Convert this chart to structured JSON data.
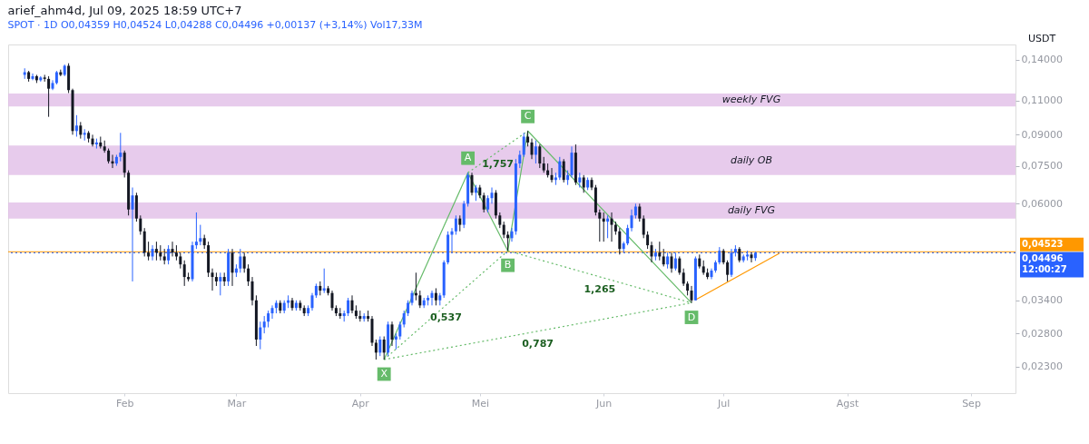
{
  "chart_data": {
    "type": "candlestick",
    "title": "arief_ahm4d, Jul 09, 2025 18:59 UTC+7",
    "subtitle": "SPOT · 1D   O0,04359 H0,04524 L0,04288 C0,04496 +0,00137 (+3,14%) Vol17,33M",
    "x": [
      "2025-01-07",
      "2025-01-08",
      "2025-01-09",
      "2025-01-10",
      "2025-01-11",
      "2025-01-12",
      "2025-01-13",
      "2025-01-14",
      "2025-01-15",
      "2025-01-16",
      "2025-01-17",
      "2025-01-18",
      "2025-01-19",
      "2025-01-20",
      "2025-01-21",
      "2025-01-22",
      "2025-01-23",
      "2025-01-24",
      "2025-01-25",
      "2025-01-26",
      "2025-01-27",
      "2025-01-28",
      "2025-01-29",
      "2025-01-30",
      "2025-01-31",
      "2025-02-01",
      "2025-02-02",
      "2025-02-03",
      "2025-02-04",
      "2025-02-05",
      "2025-02-06",
      "2025-02-07",
      "2025-02-08",
      "2025-02-09",
      "2025-02-10",
      "2025-02-11",
      "2025-02-12",
      "2025-02-13",
      "2025-02-14",
      "2025-02-15",
      "2025-02-16",
      "2025-02-17",
      "2025-02-18",
      "2025-02-19",
      "2025-02-20",
      "2025-02-21",
      "2025-02-22",
      "2025-02-23",
      "2025-02-24",
      "2025-02-25",
      "2025-02-26",
      "2025-02-27",
      "2025-02-28",
      "2025-03-01",
      "2025-03-02",
      "2025-03-03",
      "2025-03-04",
      "2025-03-05",
      "2025-03-06",
      "2025-03-07",
      "2025-03-08",
      "2025-03-09",
      "2025-03-10",
      "2025-03-11",
      "2025-03-12",
      "2025-03-13",
      "2025-03-14",
      "2025-03-15",
      "2025-03-16",
      "2025-03-17",
      "2025-03-18",
      "2025-03-19",
      "2025-03-20",
      "2025-03-21",
      "2025-03-22",
      "2025-03-23",
      "2025-03-24",
      "2025-03-25",
      "2025-03-26",
      "2025-03-27",
      "2025-03-28",
      "2025-03-29",
      "2025-03-30",
      "2025-03-31",
      "2025-04-01",
      "2025-04-02",
      "2025-04-03",
      "2025-04-04",
      "2025-04-05",
      "2025-04-06",
      "2025-04-07",
      "2025-04-08",
      "2025-04-09",
      "2025-04-10",
      "2025-04-11",
      "2025-04-12",
      "2025-04-13",
      "2025-04-14",
      "2025-04-15",
      "2025-04-16",
      "2025-04-17",
      "2025-04-18",
      "2025-04-19",
      "2025-04-20",
      "2025-04-21",
      "2025-04-22",
      "2025-04-23",
      "2025-04-24",
      "2025-04-25",
      "2025-04-26",
      "2025-04-27",
      "2025-04-28",
      "2025-04-29",
      "2025-04-30",
      "2025-05-01",
      "2025-05-02",
      "2025-05-03",
      "2025-05-04",
      "2025-05-05",
      "2025-05-06",
      "2025-05-07",
      "2025-05-08",
      "2025-05-09",
      "2025-05-10",
      "2025-05-11",
      "2025-05-12",
      "2025-05-13",
      "2025-05-14",
      "2025-05-15",
      "2025-05-16",
      "2025-05-17",
      "2025-05-18",
      "2025-05-19",
      "2025-05-20",
      "2025-05-21",
      "2025-05-22",
      "2025-05-23",
      "2025-05-24",
      "2025-05-25",
      "2025-05-26",
      "2025-05-27",
      "2025-05-28",
      "2025-05-29",
      "2025-05-30",
      "2025-05-31",
      "2025-06-01",
      "2025-06-02",
      "2025-06-03",
      "2025-06-04",
      "2025-06-05",
      "2025-06-06",
      "2025-06-07",
      "2025-06-08",
      "2025-06-09",
      "2025-06-10",
      "2025-06-11",
      "2025-06-12",
      "2025-06-13",
      "2025-06-14",
      "2025-06-15",
      "2025-06-16",
      "2025-06-17",
      "2025-06-18",
      "2025-06-19",
      "2025-06-20",
      "2025-06-21",
      "2025-06-22",
      "2025-06-23",
      "2025-06-24",
      "2025-06-25",
      "2025-06-26",
      "2025-06-27",
      "2025-06-28",
      "2025-06-29",
      "2025-06-30",
      "2025-07-01",
      "2025-07-02",
      "2025-07-03",
      "2025-07-04",
      "2025-07-05",
      "2025-07-06",
      "2025-07-07",
      "2025-07-08",
      "2025-07-09"
    ],
    "ohlc": [
      [
        0.128,
        0.133,
        0.125,
        0.13
      ],
      [
        0.13,
        0.131,
        0.123,
        0.125
      ],
      [
        0.125,
        0.129,
        0.124,
        0.127
      ],
      [
        0.127,
        0.128,
        0.122,
        0.124
      ],
      [
        0.124,
        0.127,
        0.123,
        0.126
      ],
      [
        0.126,
        0.128,
        0.123,
        0.125
      ],
      [
        0.125,
        0.127,
        0.1,
        0.118
      ],
      [
        0.118,
        0.124,
        0.117,
        0.122
      ],
      [
        0.122,
        0.131,
        0.121,
        0.13
      ],
      [
        0.13,
        0.132,
        0.127,
        0.128
      ],
      [
        0.128,
        0.136,
        0.127,
        0.135
      ],
      [
        0.135,
        0.137,
        0.115,
        0.117
      ],
      [
        0.117,
        0.118,
        0.09,
        0.092
      ],
      [
        0.092,
        0.101,
        0.089,
        0.095
      ],
      [
        0.095,
        0.097,
        0.088,
        0.09
      ],
      [
        0.09,
        0.093,
        0.087,
        0.091
      ],
      [
        0.091,
        0.092,
        0.086,
        0.088
      ],
      [
        0.088,
        0.09,
        0.084,
        0.085
      ],
      [
        0.085,
        0.088,
        0.083,
        0.086
      ],
      [
        0.086,
        0.089,
        0.083,
        0.084
      ],
      [
        0.084,
        0.087,
        0.081,
        0.082
      ],
      [
        0.082,
        0.083,
        0.076,
        0.077
      ],
      [
        0.077,
        0.08,
        0.074,
        0.076
      ],
      [
        0.076,
        0.08,
        0.075,
        0.079
      ],
      [
        0.079,
        0.091,
        0.077,
        0.081
      ],
      [
        0.081,
        0.082,
        0.07,
        0.072
      ],
      [
        0.072,
        0.073,
        0.056,
        0.058
      ],
      [
        0.058,
        0.066,
        0.038,
        0.063
      ],
      [
        0.063,
        0.064,
        0.054,
        0.055
      ],
      [
        0.055,
        0.056,
        0.05,
        0.051
      ],
      [
        0.051,
        0.052,
        0.044,
        0.045
      ],
      [
        0.045,
        0.048,
        0.043,
        0.044
      ],
      [
        0.044,
        0.047,
        0.043,
        0.046
      ],
      [
        0.046,
        0.048,
        0.043,
        0.045
      ],
      [
        0.045,
        0.047,
        0.043,
        0.044
      ],
      [
        0.044,
        0.046,
        0.042,
        0.043
      ],
      [
        0.043,
        0.047,
        0.042,
        0.046
      ],
      [
        0.046,
        0.048,
        0.044,
        0.045
      ],
      [
        0.045,
        0.047,
        0.043,
        0.044
      ],
      [
        0.044,
        0.045,
        0.041,
        0.042
      ],
      [
        0.042,
        0.043,
        0.037,
        0.039
      ],
      [
        0.039,
        0.04,
        0.038,
        0.0385
      ],
      [
        0.0385,
        0.048,
        0.038,
        0.047
      ],
      [
        0.047,
        0.057,
        0.046,
        0.048
      ],
      [
        0.048,
        0.053,
        0.047,
        0.049
      ],
      [
        0.049,
        0.05,
        0.046,
        0.047
      ],
      [
        0.047,
        0.048,
        0.039,
        0.04
      ],
      [
        0.04,
        0.041,
        0.036,
        0.039
      ],
      [
        0.039,
        0.04,
        0.037,
        0.038
      ],
      [
        0.038,
        0.04,
        0.035,
        0.039
      ],
      [
        0.039,
        0.04,
        0.037,
        0.038
      ],
      [
        0.038,
        0.046,
        0.037,
        0.045
      ],
      [
        0.045,
        0.046,
        0.037,
        0.04
      ],
      [
        0.04,
        0.042,
        0.039,
        0.041
      ],
      [
        0.041,
        0.046,
        0.04,
        0.044
      ],
      [
        0.044,
        0.045,
        0.04,
        0.041
      ],
      [
        0.041,
        0.042,
        0.037,
        0.038
      ],
      [
        0.038,
        0.039,
        0.033,
        0.034
      ],
      [
        0.034,
        0.035,
        0.026,
        0.027
      ],
      [
        0.027,
        0.03,
        0.0255,
        0.029
      ],
      [
        0.029,
        0.031,
        0.028,
        0.03
      ],
      [
        0.03,
        0.032,
        0.029,
        0.0315
      ],
      [
        0.0315,
        0.033,
        0.0305,
        0.0325
      ],
      [
        0.0325,
        0.034,
        0.0315,
        0.0335
      ],
      [
        0.0335,
        0.034,
        0.0315,
        0.032
      ],
      [
        0.032,
        0.034,
        0.0315,
        0.0335
      ],
      [
        0.0335,
        0.035,
        0.0325,
        0.034
      ],
      [
        0.034,
        0.0345,
        0.032,
        0.0325
      ],
      [
        0.0325,
        0.034,
        0.032,
        0.0335
      ],
      [
        0.0335,
        0.034,
        0.032,
        0.0325
      ],
      [
        0.0325,
        0.033,
        0.031,
        0.0315
      ],
      [
        0.0315,
        0.033,
        0.031,
        0.0325
      ],
      [
        0.0325,
        0.0355,
        0.032,
        0.035
      ],
      [
        0.035,
        0.0375,
        0.0345,
        0.037
      ],
      [
        0.037,
        0.038,
        0.035,
        0.036
      ],
      [
        0.036,
        0.041,
        0.0355,
        0.0365
      ],
      [
        0.0365,
        0.037,
        0.035,
        0.0355
      ],
      [
        0.0355,
        0.036,
        0.032,
        0.0325
      ],
      [
        0.0325,
        0.033,
        0.031,
        0.0315
      ],
      [
        0.0315,
        0.0325,
        0.0305,
        0.031
      ],
      [
        0.031,
        0.032,
        0.03,
        0.0315
      ],
      [
        0.0315,
        0.0345,
        0.031,
        0.034
      ],
      [
        0.034,
        0.035,
        0.0315,
        0.032
      ],
      [
        0.032,
        0.033,
        0.0305,
        0.031
      ],
      [
        0.031,
        0.032,
        0.03,
        0.0305
      ],
      [
        0.0305,
        0.0315,
        0.03,
        0.031
      ],
      [
        0.031,
        0.032,
        0.03,
        0.0305
      ],
      [
        0.0305,
        0.031,
        0.026,
        0.0265
      ],
      [
        0.0265,
        0.027,
        0.024,
        0.025
      ],
      [
        0.025,
        0.0275,
        0.0245,
        0.027
      ],
      [
        0.027,
        0.0275,
        0.024,
        0.025
      ],
      [
        0.025,
        0.03,
        0.0245,
        0.0295
      ],
      [
        0.0295,
        0.03,
        0.026,
        0.027
      ],
      [
        0.027,
        0.028,
        0.0255,
        0.0275
      ],
      [
        0.0275,
        0.03,
        0.027,
        0.0295
      ],
      [
        0.0295,
        0.032,
        0.029,
        0.0315
      ],
      [
        0.0315,
        0.034,
        0.031,
        0.0335
      ],
      [
        0.0335,
        0.036,
        0.033,
        0.0355
      ],
      [
        0.0355,
        0.04,
        0.034,
        0.035
      ],
      [
        0.035,
        0.036,
        0.0325,
        0.033
      ],
      [
        0.033,
        0.0345,
        0.0325,
        0.034
      ],
      [
        0.034,
        0.035,
        0.033,
        0.0345
      ],
      [
        0.0345,
        0.036,
        0.033,
        0.0355
      ],
      [
        0.0355,
        0.0365,
        0.033,
        0.034
      ],
      [
        0.034,
        0.0355,
        0.033,
        0.035
      ],
      [
        0.035,
        0.043,
        0.0345,
        0.0425
      ],
      [
        0.0425,
        0.051,
        0.042,
        0.05
      ],
      [
        0.05,
        0.052,
        0.045,
        0.051
      ],
      [
        0.051,
        0.056,
        0.05,
        0.055
      ],
      [
        0.055,
        0.056,
        0.051,
        0.053
      ],
      [
        0.053,
        0.061,
        0.052,
        0.06
      ],
      [
        0.06,
        0.072,
        0.059,
        0.071
      ],
      [
        0.071,
        0.072,
        0.063,
        0.064
      ],
      [
        0.064,
        0.067,
        0.061,
        0.066
      ],
      [
        0.066,
        0.067,
        0.062,
        0.063
      ],
      [
        0.063,
        0.064,
        0.057,
        0.058
      ],
      [
        0.058,
        0.063,
        0.057,
        0.062
      ],
      [
        0.062,
        0.066,
        0.06,
        0.064
      ],
      [
        0.064,
        0.065,
        0.055,
        0.056
      ],
      [
        0.056,
        0.057,
        0.052,
        0.053
      ],
      [
        0.053,
        0.054,
        0.049,
        0.05
      ],
      [
        0.05,
        0.051,
        0.0455,
        0.049
      ],
      [
        0.049,
        0.052,
        0.048,
        0.051
      ],
      [
        0.051,
        0.078,
        0.05,
        0.076
      ],
      [
        0.076,
        0.082,
        0.074,
        0.08
      ],
      [
        0.08,
        0.091,
        0.079,
        0.089
      ],
      [
        0.089,
        0.092,
        0.084,
        0.086
      ],
      [
        0.086,
        0.088,
        0.078,
        0.08
      ],
      [
        0.08,
        0.087,
        0.076,
        0.084
      ],
      [
        0.084,
        0.085,
        0.074,
        0.076
      ],
      [
        0.076,
        0.079,
        0.072,
        0.073
      ],
      [
        0.073,
        0.076,
        0.07,
        0.071
      ],
      [
        0.071,
        0.074,
        0.068,
        0.069
      ],
      [
        0.069,
        0.072,
        0.067,
        0.07
      ],
      [
        0.07,
        0.079,
        0.069,
        0.077
      ],
      [
        0.077,
        0.078,
        0.068,
        0.069
      ],
      [
        0.069,
        0.073,
        0.067,
        0.071
      ],
      [
        0.071,
        0.084,
        0.07,
        0.081
      ],
      [
        0.081,
        0.085,
        0.067,
        0.068
      ],
      [
        0.068,
        0.072,
        0.066,
        0.07
      ],
      [
        0.07,
        0.071,
        0.064,
        0.066
      ],
      [
        0.066,
        0.07,
        0.065,
        0.069
      ],
      [
        0.069,
        0.07,
        0.065,
        0.066
      ],
      [
        0.066,
        0.067,
        0.056,
        0.057
      ],
      [
        0.057,
        0.058,
        0.048,
        0.055
      ],
      [
        0.055,
        0.057,
        0.048,
        0.054
      ],
      [
        0.054,
        0.056,
        0.049,
        0.055
      ],
      [
        0.055,
        0.057,
        0.048,
        0.053
      ],
      [
        0.053,
        0.054,
        0.05,
        0.051
      ],
      [
        0.051,
        0.052,
        0.0445,
        0.046
      ],
      [
        0.046,
        0.048,
        0.045,
        0.0475
      ],
      [
        0.0475,
        0.053,
        0.047,
        0.052
      ],
      [
        0.052,
        0.058,
        0.051,
        0.056
      ],
      [
        0.056,
        0.06,
        0.055,
        0.059
      ],
      [
        0.059,
        0.06,
        0.054,
        0.055
      ],
      [
        0.055,
        0.056,
        0.049,
        0.05
      ],
      [
        0.05,
        0.051,
        0.046,
        0.047
      ],
      [
        0.047,
        0.048,
        0.0425,
        0.044
      ],
      [
        0.044,
        0.046,
        0.043,
        0.045
      ],
      [
        0.045,
        0.048,
        0.043,
        0.044
      ],
      [
        0.044,
        0.046,
        0.0415,
        0.042
      ],
      [
        0.042,
        0.045,
        0.041,
        0.044
      ],
      [
        0.044,
        0.045,
        0.04,
        0.041
      ],
      [
        0.041,
        0.045,
        0.0405,
        0.0435
      ],
      [
        0.0435,
        0.044,
        0.0395,
        0.04
      ],
      [
        0.04,
        0.041,
        0.037,
        0.0375
      ],
      [
        0.0375,
        0.038,
        0.035,
        0.036
      ],
      [
        0.036,
        0.037,
        0.0335,
        0.034
      ],
      [
        0.034,
        0.044,
        0.034,
        0.0435
      ],
      [
        0.0435,
        0.0445,
        0.041,
        0.0415
      ],
      [
        0.0415,
        0.043,
        0.0395,
        0.04
      ],
      [
        0.04,
        0.041,
        0.0385,
        0.039
      ],
      [
        0.039,
        0.041,
        0.0385,
        0.0405
      ],
      [
        0.0405,
        0.043,
        0.04,
        0.0425
      ],
      [
        0.0425,
        0.0465,
        0.042,
        0.0455
      ],
      [
        0.0455,
        0.046,
        0.042,
        0.0425
      ],
      [
        0.0425,
        0.043,
        0.038,
        0.0395
      ],
      [
        0.0395,
        0.046,
        0.039,
        0.045
      ],
      [
        0.045,
        0.047,
        0.044,
        0.046
      ],
      [
        0.046,
        0.0465,
        0.0425,
        0.043
      ],
      [
        0.043,
        0.0445,
        0.0425,
        0.044
      ],
      [
        0.044,
        0.0455,
        0.043,
        0.0445
      ],
      [
        0.0445,
        0.045,
        0.0425,
        0.04359
      ],
      [
        0.04359,
        0.04524,
        0.04288,
        0.04496
      ]
    ],
    "series": [
      {
        "type": "line",
        "color": "#66bb6a",
        "line_style": "solid",
        "x": [
          "2025-04-07",
          "2025-04-28",
          "2025-05-08",
          "2025-05-13",
          "2025-06-23"
        ],
        "values": [
          0.024,
          0.072,
          0.0455,
          0.092,
          0.0335
        ]
      },
      {
        "type": "line",
        "color": "#66bb6a",
        "line_style": "dotted",
        "x": [
          "2025-04-07",
          "2025-05-08"
        ],
        "values": [
          0.024,
          0.0455
        ]
      },
      {
        "type": "line",
        "color": "#66bb6a",
        "line_style": "dotted",
        "x": [
          "2025-04-28",
          "2025-05-13"
        ],
        "values": [
          0.072,
          0.092
        ]
      },
      {
        "type": "line",
        "color": "#66bb6a",
        "line_style": "dotted",
        "x": [
          "2025-05-08",
          "2025-06-23"
        ],
        "values": [
          0.0455,
          0.0335
        ]
      },
      {
        "type": "line",
        "color": "#66bb6a",
        "line_style": "dotted",
        "x": [
          "2025-04-07",
          "2025-06-23"
        ],
        "values": [
          0.024,
          0.0335
        ]
      },
      {
        "type": "line",
        "color": "#ff9800",
        "line_style": "solid",
        "x": [
          "2025-06-24",
          "2025-07-15"
        ],
        "values": [
          0.0341,
          0.0448
        ]
      }
    ],
    "xlim": [
      "2025-01-04",
      "2025-09-11"
    ],
    "xticks": [
      {
        "value": "2025-02-01",
        "label": "Feb"
      },
      {
        "value": "2025-03-01",
        "label": "Mar"
      },
      {
        "value": "2025-04-01",
        "label": "Apr"
      },
      {
        "value": "2025-05-01",
        "label": "Mei"
      },
      {
        "value": "2025-06-01",
        "label": "Jun"
      },
      {
        "value": "2025-07-01",
        "label": "Jul"
      },
      {
        "value": "2025-08-01",
        "label": "Agst"
      },
      {
        "value": "2025-09-01",
        "label": "Sep"
      }
    ],
    "ylim": [
      0.0197,
      0.153
    ],
    "yticks": [
      {
        "value": 0.023,
        "label": "0,02300"
      },
      {
        "value": 0.028,
        "label": "0,02800"
      },
      {
        "value": 0.034,
        "label": "0,03400"
      },
      {
        "value": 0.06,
        "label": "0,06000"
      },
      {
        "value": 0.075,
        "label": "0,07500"
      },
      {
        "value": 0.09,
        "label": "0,09000"
      },
      {
        "value": 0.11,
        "label": "0,11000"
      },
      {
        "value": 0.14,
        "label": "0,14000"
      }
    ],
    "log": "y",
    "grid": false,
    "legend": false,
    "bands": [
      {
        "axis": "y",
        "from": 0.1063,
        "to": 0.1147,
        "label": "weekly FVG",
        "color": "#e1bee7"
      },
      {
        "axis": "y",
        "from": 0.071,
        "to": 0.0845,
        "label": "daily OB",
        "color": "#e1bee7"
      },
      {
        "axis": "y",
        "from": 0.055,
        "to": 0.0604,
        "label": "daily FVG",
        "color": "#e1bee7"
      }
    ],
    "ref_lines": [
      {
        "axis": "y",
        "value": 0.04523,
        "label": "0,04523",
        "color": "#ff9800",
        "line_style": "solid"
      },
      {
        "axis": "y",
        "value": 0.04496,
        "label": "0,04496 12:00:27",
        "color": "#2962ff",
        "line_style": "dotted"
      }
    ],
    "annotations": [
      "USDT",
      {
        "text": "X",
        "x": "2025-04-07",
        "y": 0.024
      },
      {
        "text": "A",
        "x": "2025-04-28",
        "y": 0.072
      },
      {
        "text": "B",
        "x": "2025-05-08",
        "y": 0.0455
      },
      {
        "text": "C",
        "x": "2025-05-13",
        "y": 0.092
      },
      {
        "text": "D",
        "x": "2025-06-23",
        "y": 0.0335
      },
      "0,537",
      "1,757",
      "1,265",
      "0,787"
    ]
  }
}
